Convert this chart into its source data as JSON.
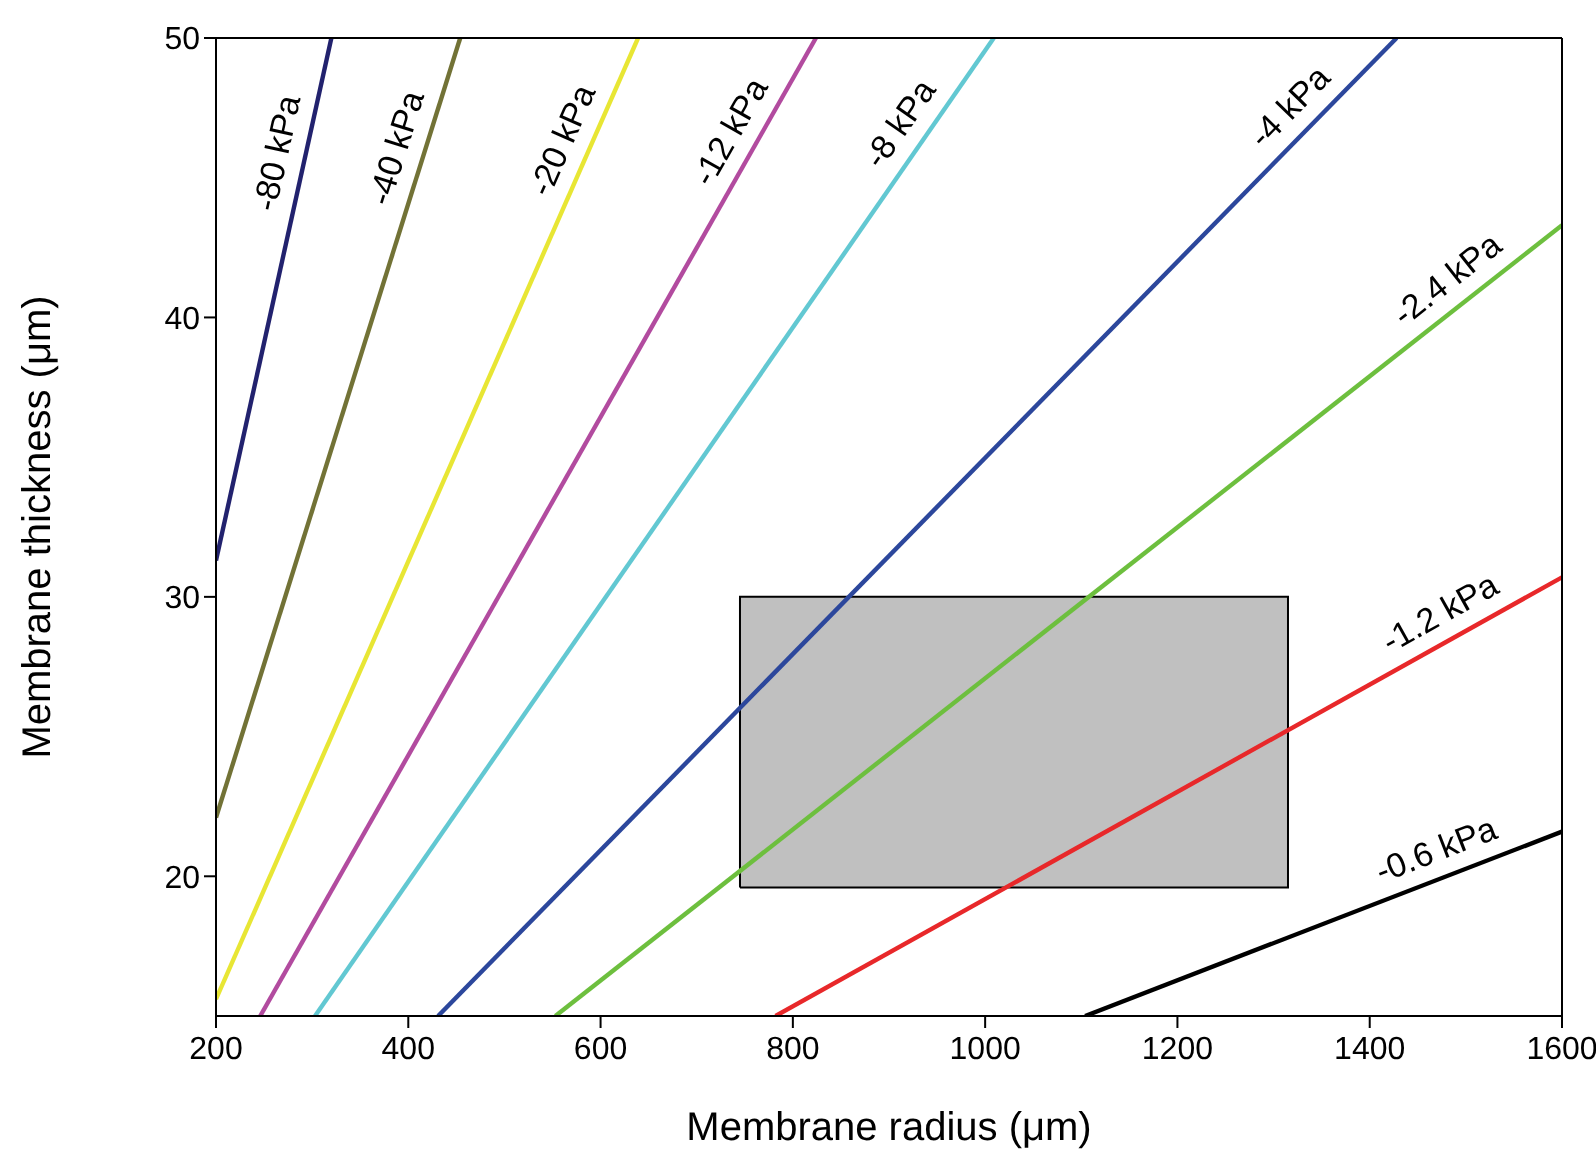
{
  "chart_data": {
    "type": "line",
    "xlabel": "Membrane radius (μm)",
    "ylabel": "Membrane thickness (μm)",
    "xlim": [
      200,
      1600
    ],
    "ylim": [
      15,
      50
    ],
    "xticks": [
      200,
      400,
      600,
      800,
      1000,
      1200,
      1400,
      1600
    ],
    "yticks": [
      20,
      30,
      40,
      50
    ],
    "marker": "none",
    "line_style": "solid",
    "series": [
      {
        "name": "-80 kPa",
        "color": "#22226e",
        "x": [
          200,
          320
        ],
        "values": [
          31.3,
          50
        ]
      },
      {
        "name": "-40 kPa",
        "color": "#727236",
        "x": [
          200,
          454
        ],
        "values": [
          22.1,
          50
        ]
      },
      {
        "name": "-20 kPa",
        "color": "#e8e634",
        "x": [
          200,
          639
        ],
        "values": [
          15.6,
          50
        ]
      },
      {
        "name": "-12 kPa",
        "color": "#b24b9f",
        "x": [
          246,
          824
        ],
        "values": [
          15,
          50
        ]
      },
      {
        "name": "-8 kPa",
        "color": "#62c8d2",
        "x": [
          303,
          1009
        ],
        "values": [
          15,
          50
        ]
      },
      {
        "name": "-4 kPa",
        "color": "#2c479c",
        "x": [
          431,
          1428
        ],
        "values": [
          15,
          50
        ]
      },
      {
        "name": "-2.4 kPa",
        "color": "#6dbf3e",
        "x": [
          553,
          1600
        ],
        "values": [
          15,
          43.3
        ]
      },
      {
        "name": "-1.2 kPa",
        "color": "#e8282a",
        "x": [
          782,
          1600
        ],
        "values": [
          15,
          30.7
        ]
      },
      {
        "name": "-0.6 kPa",
        "color": "#000000",
        "x": [
          1104,
          1600
        ],
        "values": [
          15,
          21.6
        ]
      },
      {
        "type": "area",
        "color": "#c0c0c0",
        "x": [
          745,
          745,
          1315,
          1315,
          745
        ],
        "values": [
          19.6,
          30,
          30,
          19.6,
          19.6
        ]
      }
    ]
  }
}
